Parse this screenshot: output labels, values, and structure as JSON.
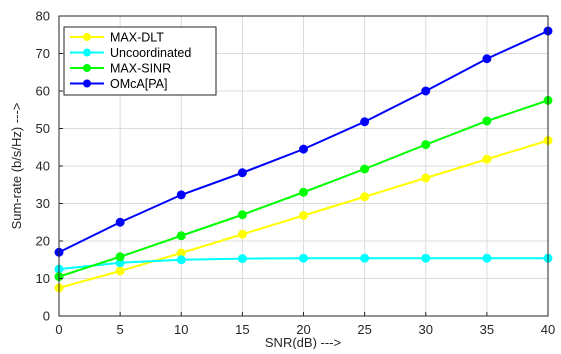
{
  "chart_data": {
    "type": "line",
    "title": "",
    "xlabel": "SNR(dB) --->",
    "ylabel": "Sum-rate (b/s/Hz) --->",
    "x": [
      0,
      5,
      10,
      15,
      20,
      25,
      30,
      35,
      40
    ],
    "xlim": [
      0,
      40
    ],
    "ylim": [
      0,
      80
    ],
    "xticks": [
      0,
      5,
      10,
      15,
      20,
      25,
      30,
      35,
      40
    ],
    "yticks": [
      0,
      10,
      20,
      30,
      40,
      50,
      60,
      70,
      80
    ],
    "grid": true,
    "legend_position": "top-left",
    "series": [
      {
        "name": "MAX-DLT",
        "color": "#ffff00",
        "values": [
          7.5,
          12,
          16.8,
          21.8,
          26.8,
          31.8,
          36.8,
          41.8,
          46.8
        ]
      },
      {
        "name": "Uncoordinated",
        "color": "#00ffff",
        "values": [
          12.5,
          14.2,
          15.0,
          15.3,
          15.4,
          15.4,
          15.4,
          15.4,
          15.4
        ]
      },
      {
        "name": "MAX-SINR",
        "color": "#00ff00",
        "values": [
          10.5,
          15.8,
          21.4,
          27.0,
          33.0,
          39.2,
          45.7,
          52.0,
          57.5
        ]
      },
      {
        "name": "OMcA[PA]",
        "color": "#0000ff",
        "values": [
          17.0,
          25.0,
          32.3,
          38.2,
          44.5,
          51.8,
          60.0,
          68.6,
          76.0
        ]
      }
    ]
  }
}
